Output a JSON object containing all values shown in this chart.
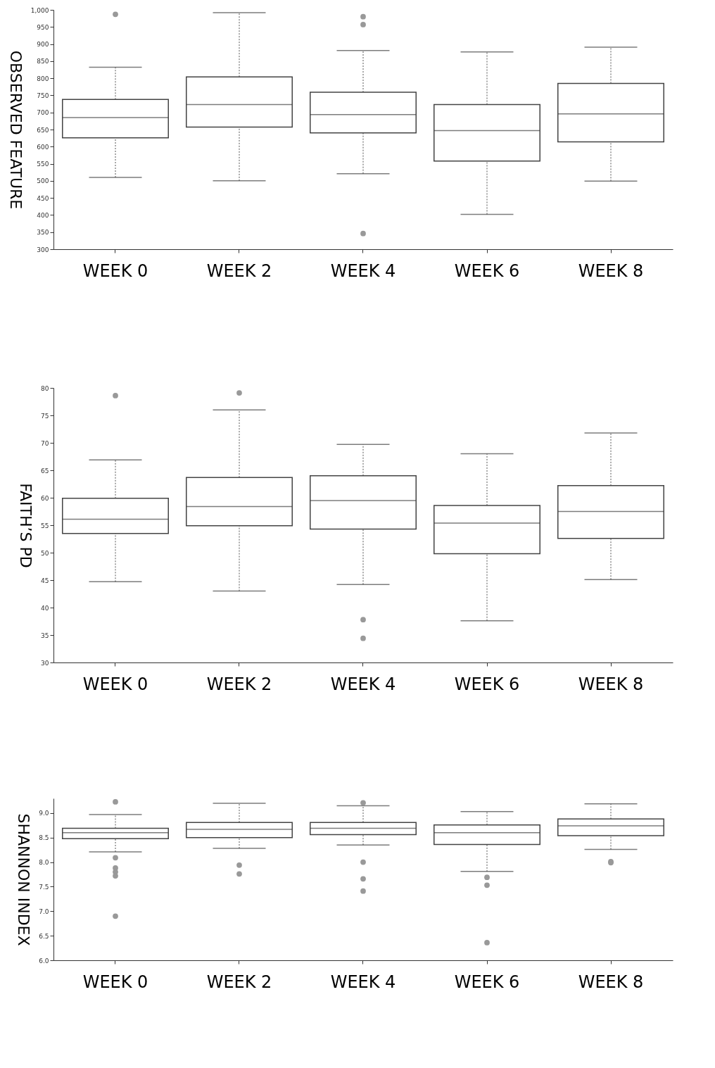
{
  "chart_data": [
    {
      "type": "box",
      "ylabel": "OBSERVED FEATURE",
      "categories": [
        "WEEK 0",
        "WEEK 2",
        "WEEK 4",
        "WEEK 6",
        "WEEK 8"
      ],
      "boxes": [
        {
          "low": 510,
          "q1": 626,
          "median": 685,
          "q3": 738,
          "high": 832,
          "outliers": [
            987
          ]
        },
        {
          "low": 500,
          "q1": 657,
          "median": 723,
          "q3": 804,
          "high": 992
        },
        {
          "low": 521,
          "q1": 640,
          "median": 694,
          "q3": 759,
          "high": 881,
          "outliers": [
            980,
            957,
            346
          ]
        },
        {
          "low": 402,
          "q1": 558,
          "median": 647,
          "q3": 723,
          "high": 877
        },
        {
          "low": 499,
          "q1": 614,
          "median": 696,
          "q3": 785,
          "high": 891
        }
      ],
      "ylim": [
        300,
        1000
      ],
      "yticks": [
        300,
        350,
        400,
        450,
        500,
        550,
        600,
        650,
        700,
        750,
        800,
        850,
        900,
        950,
        {
          "value": 1000,
          "label": "1,000"
        }
      ]
    },
    {
      "type": "box",
      "ylabel": "FAITH’S PD",
      "categories": [
        "WEEK 0",
        "WEEK 2",
        "WEEK 4",
        "WEEK 6",
        "WEEK 8"
      ],
      "boxes": [
        {
          "low": 44.7,
          "q1": 53.5,
          "median": 56.1,
          "q3": 59.9,
          "high": 66.9,
          "outliers": [
            78.6
          ]
        },
        {
          "low": 43.0,
          "q1": 54.9,
          "median": 58.4,
          "q3": 63.7,
          "high": 76.0,
          "outliers": [
            79.1
          ]
        },
        {
          "low": 44.2,
          "q1": 54.3,
          "median": 59.5,
          "q3": 64.0,
          "high": 69.7,
          "outliers": [
            37.8,
            34.4
          ]
        },
        {
          "low": 37.6,
          "q1": 49.8,
          "median": 55.4,
          "q3": 58.6,
          "high": 68.0
        },
        {
          "low": 45.1,
          "q1": 52.6,
          "median": 57.5,
          "q3": 62.2,
          "high": 71.8
        }
      ],
      "ylim": [
        30,
        80
      ],
      "yticks": [
        30,
        35,
        40,
        45,
        50,
        55,
        60,
        65,
        70,
        75,
        80
      ]
    },
    {
      "type": "box",
      "ylabel": "SHANNON INDEX",
      "categories": [
        "WEEK 0",
        "WEEK 2",
        "WEEK 4",
        "WEEK 6",
        "WEEK 8"
      ],
      "boxes": [
        {
          "low": 8.21,
          "q1": 8.48,
          "median": 8.6,
          "q3": 8.69,
          "high": 8.97,
          "outliers": [
            9.23,
            8.09,
            7.88,
            7.8,
            7.72,
            6.9
          ]
        },
        {
          "low": 8.28,
          "q1": 8.5,
          "median": 8.67,
          "q3": 8.81,
          "high": 9.2,
          "outliers": [
            7.94,
            7.76
          ]
        },
        {
          "low": 8.35,
          "q1": 8.56,
          "median": 8.69,
          "q3": 8.81,
          "high": 9.15,
          "outliers": [
            9.21,
            8.0,
            7.66,
            7.41
          ]
        },
        {
          "low": 7.81,
          "q1": 8.36,
          "median": 8.6,
          "q3": 8.76,
          "high": 9.03,
          "outliers": [
            7.69,
            7.53,
            6.36
          ]
        },
        {
          "low": 8.26,
          "q1": 8.54,
          "median": 8.74,
          "q3": 8.88,
          "high": 9.19,
          "outliers": [
            8.01,
            7.99
          ]
        }
      ],
      "ylim": [
        6.0,
        9.3
      ],
      "yticks": [
        {
          "value": 6,
          "label": "6.0"
        },
        6.5,
        {
          "value": 7,
          "label": "7.0"
        },
        7.5,
        {
          "value": 8,
          "label": "8.0"
        },
        8.5,
        {
          "value": 9,
          "label": "9.0"
        }
      ]
    }
  ]
}
